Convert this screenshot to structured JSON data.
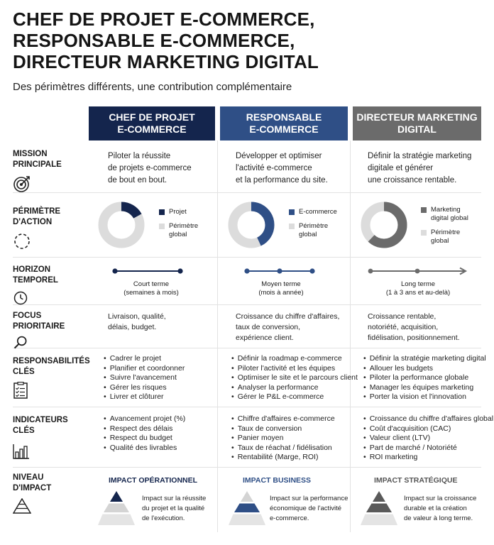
{
  "header": {
    "title_line1": "CHEF DE PROJET E-COMMERCE,",
    "title_line2": "RESPONSABLE E-COMMERCE,",
    "title_line3": "DIRECTEUR MARKETING DIGITAL",
    "subtitle": "Des périmètres différents, une contribution complémentaire"
  },
  "colors": {
    "col1": "#14254d",
    "col2": "#2f4f86",
    "col3": "#6b6b6b",
    "donut_rest": "#dcdcdc"
  },
  "columns": [
    {
      "line1": "CHEF DE PROJET",
      "line2": "E-COMMERCE"
    },
    {
      "line1": "RESPONSABLE",
      "line2": "E-COMMERCE"
    },
    {
      "line1": "DIRECTEUR MARKETING",
      "line2": "DIGITAL"
    }
  ],
  "rows": {
    "mission": {
      "label1": "MISSION",
      "label2": "PRINCIPALE",
      "icon": "target-icon"
    },
    "perimetre": {
      "label1": "PÉRIMÈTRE",
      "label2": "D'ACTION",
      "icon": "dashed-circle-icon"
    },
    "horizon": {
      "label1": "HORIZON",
      "label2": "TEMPOREL",
      "icon": "clock-icon"
    },
    "focus": {
      "label1": "FOCUS",
      "label2": "PRIORITAIRE",
      "icon": "magnifier-icon"
    },
    "responsabilites": {
      "label1": "RESPONSABILITÉS",
      "label2": "CLÉS",
      "icon": "checklist-icon"
    },
    "indicateurs": {
      "label1": "INDICATEURS",
      "label2": "CLÉS",
      "icon": "bar-chart-icon"
    },
    "niveau": {
      "label1": "NIVEAU",
      "label2": "D'IMPACT",
      "icon": "pyramid-icon"
    }
  },
  "mission": [
    [
      "Piloter la réussite",
      "de projets e-commerce",
      "de bout en bout."
    ],
    [
      "Développer et optimiser",
      "l'activité e-commerce",
      "et la performance du site."
    ],
    [
      "Définir la stratégie marketing",
      "digitale et générer",
      "une croissance rentable."
    ]
  ],
  "perimetre": [
    {
      "share": 0.17,
      "legend1": "Projet",
      "legend2a": "Périmètre",
      "legend2b": "global"
    },
    {
      "share": 0.43,
      "legend1": "E-commerce",
      "legend2a": "Périmètre",
      "legend2b": "global"
    },
    {
      "share": 0.62,
      "legend1a": "Marketing",
      "legend1b": "digital global",
      "legend2a": "Périmètre",
      "legend2b": "global"
    }
  ],
  "horizon": [
    {
      "term": "Court terme",
      "detail": "(semaines à mois)"
    },
    {
      "term": "Moyen terme",
      "detail": "(mois à année)"
    },
    {
      "term": "Long terme",
      "detail": "(1 à 3 ans et au-delà)"
    }
  ],
  "focus": [
    [
      "Livraison, qualité,",
      "délais, budget."
    ],
    [
      "Croissance du chiffre d'affaires,",
      "taux de conversion,",
      "expérience client."
    ],
    [
      "Croissance rentable,",
      "notoriété, acquisition,",
      "fidélisation, positionnement."
    ]
  ],
  "responsabilites": [
    [
      "Cadrer le projet",
      "Planifier et coordonner",
      "Suivre l'avancement",
      "Gérer les risques",
      "Livrer et clôturer"
    ],
    [
      "Définir la roadmap e-commerce",
      "Piloter l'activité et les équipes",
      "Optimiser le site et le parcours client",
      "Analyser la performance",
      "Gérer le P&L e-commerce"
    ],
    [
      "Définir la stratégie marketing digital",
      "Allouer les budgets",
      "Piloter la performance globale",
      "Manager les équipes marketing",
      "Porter la vision et l'innovation"
    ]
  ],
  "indicateurs": [
    [
      "Avancement projet (%)",
      "Respect des délais",
      "Respect du budget",
      "Qualité des livrables"
    ],
    [
      "Chiffre d'affaires e-commerce",
      "Taux de conversion",
      "Panier moyen",
      "Taux de réachat / fidélisation",
      "Rentabilité (Marge, ROI)"
    ],
    [
      "Croissance du chiffre d'affaires global",
      "Coût d'acquisition (CAC)",
      "Valeur client (LTV)",
      "Part de marché / Notoriété",
      "ROI marketing"
    ]
  ],
  "impact": [
    {
      "title": "IMPACT OPÉRATIONNEL",
      "lines": [
        "Impact sur la réussite",
        "du projet et la qualité",
        "de l'exécution."
      ]
    },
    {
      "title": "IMPACT BUSINESS",
      "lines": [
        "Impact sur la performance",
        "économique de l'activité",
        "e-commerce."
      ]
    },
    {
      "title": "IMPACT STRATÉGIQUE",
      "lines": [
        "Impact sur la croissance",
        "durable et la création",
        "de valeur à long terme."
      ]
    }
  ]
}
